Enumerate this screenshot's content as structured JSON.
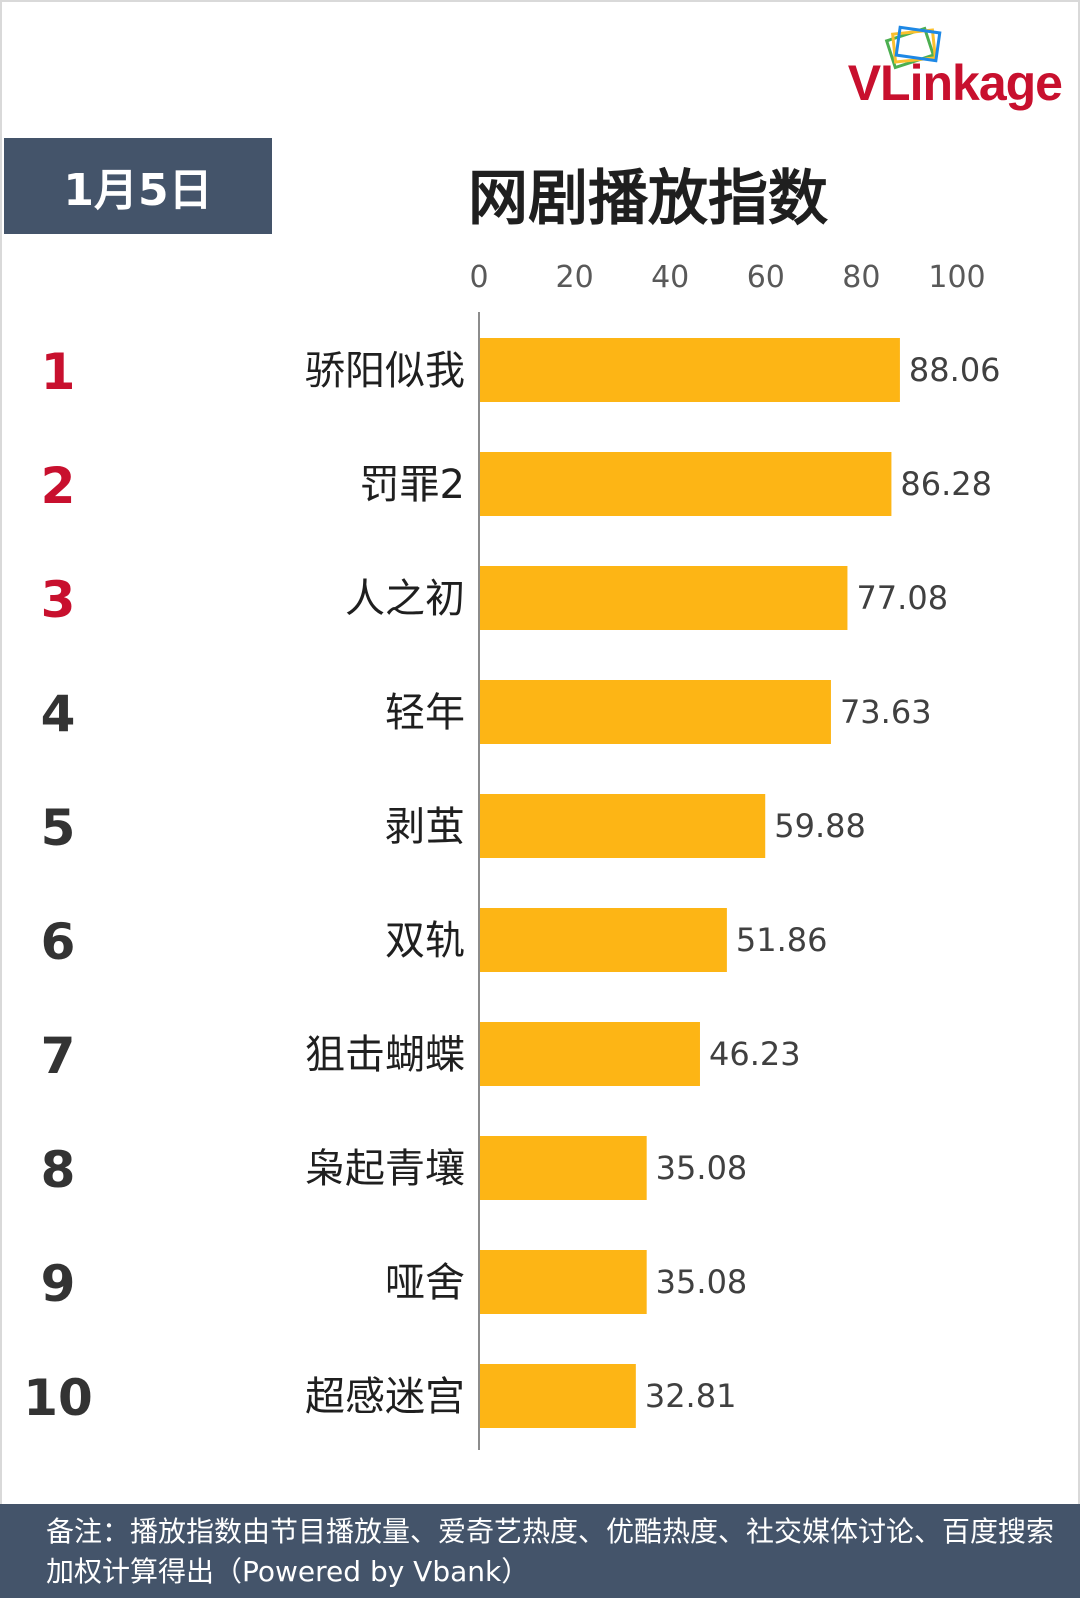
{
  "logo": {
    "text": "VLinkage"
  },
  "date_label": "1月5日",
  "chart_data": {
    "type": "bar",
    "orientation": "horizontal",
    "title": "网剧播放指数",
    "xlim": [
      0,
      100
    ],
    "ticks": [
      "0",
      "20",
      "40",
      "60",
      "80",
      "100"
    ],
    "ranks": [
      "1",
      "2",
      "3",
      "4",
      "5",
      "6",
      "7",
      "8",
      "9",
      "10"
    ],
    "categories": [
      "骄阳似我",
      "罚罪2",
      "人之初",
      "轻年",
      "剥茧",
      "双轨",
      "狙击蝴蝶",
      "枭起青壤",
      "哑舍",
      "超感迷宫"
    ],
    "values": [
      88.06,
      86.28,
      77.08,
      73.63,
      59.88,
      51.86,
      46.23,
      35.08,
      35.08,
      32.81
    ],
    "value_labels": [
      "88.06",
      "86.28",
      "77.08",
      "73.63",
      "59.88",
      "51.86",
      "46.23",
      "35.08",
      "35.08",
      "32.81"
    ],
    "bar_color": "#FDB515",
    "top3_rank_color": "#C8102E",
    "rank_color": "#333333",
    "grid": false
  },
  "footnote": "备注：播放指数由节目播放量、爱奇艺热度、优酷热度、社交媒体讨论、百度搜索加权计算得出（Powered by Vbank）"
}
